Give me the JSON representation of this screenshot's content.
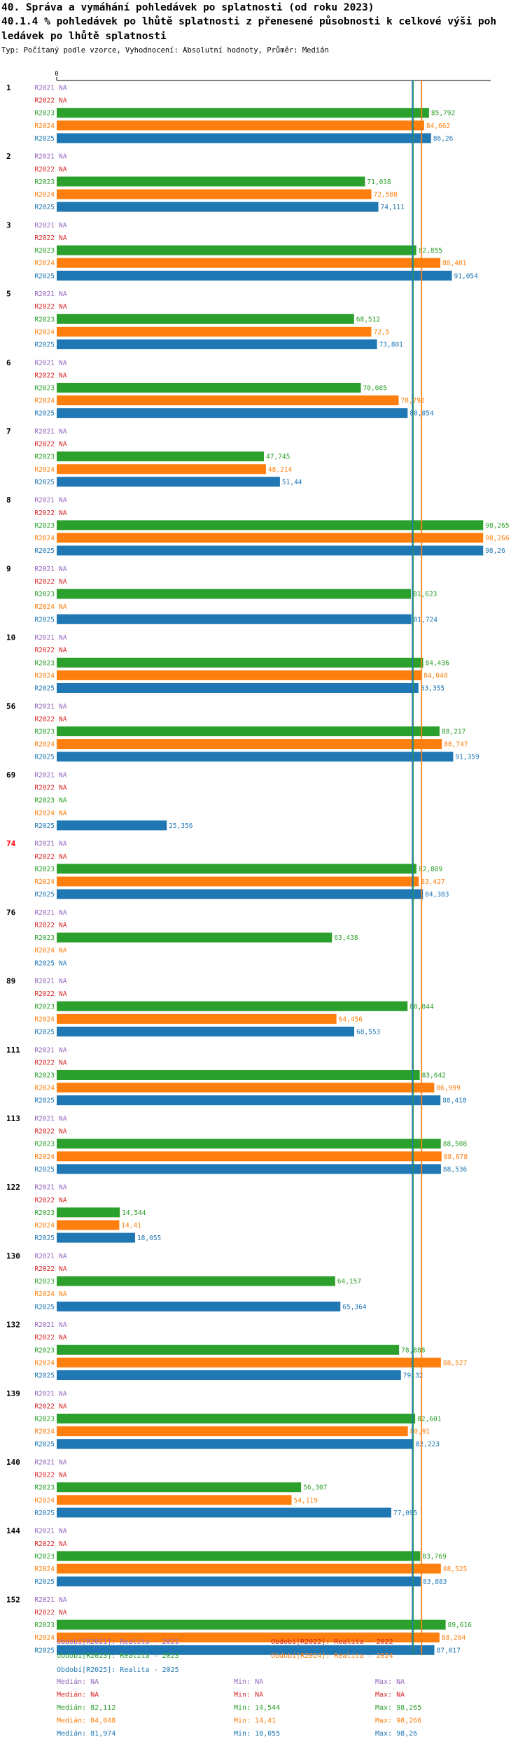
{
  "title_lines": [
    "40. Správa a vymáhání pohledávek po splatnosti (od roku 2023)",
    "40.1.4 % pohledávek po lhůtě splatnosti z přenesené působnosti k celkové výši poh",
    "ledávek po lhůtě splatnosti"
  ],
  "subtitle": "Typ: Počítaný podle vzorce, Vyhodnocení: Absolutní hodnoty, Průměr: Medián",
  "colors": {
    "R2021": "#9467bd",
    "R2022": "#d62728",
    "R2023": "#2ca02c",
    "R2024": "#ff7f0e",
    "R2025": "#1f77b4",
    "axis": "#000000",
    "highlight_group": "#ff0000"
  },
  "chart_data": {
    "type": "bar",
    "orientation": "horizontal",
    "axis_zero_label": "0",
    "xlim": [
      0,
      100
    ],
    "na_label": "NA",
    "series_names": [
      "R2021",
      "R2022",
      "R2023",
      "R2024",
      "R2025"
    ],
    "groups": [
      {
        "label": "1",
        "highlight": false,
        "labels": [
          "NA",
          "NA",
          "85,792",
          "84,662",
          "86,26"
        ],
        "values": [
          null,
          null,
          85.792,
          84.662,
          86.26
        ]
      },
      {
        "label": "2",
        "highlight": false,
        "labels": [
          "NA",
          "NA",
          "71,038",
          "72,508",
          "74,111"
        ],
        "values": [
          null,
          null,
          71.038,
          72.508,
          74.111
        ]
      },
      {
        "label": "3",
        "highlight": false,
        "labels": [
          "NA",
          "NA",
          "82,855",
          "88,401",
          "91,054"
        ],
        "values": [
          null,
          null,
          82.855,
          88.401,
          91.054
        ]
      },
      {
        "label": "5",
        "highlight": false,
        "labels": [
          "NA",
          "NA",
          "68,512",
          "72,5",
          "73,801"
        ],
        "values": [
          null,
          null,
          68.512,
          72.5,
          73.801
        ]
      },
      {
        "label": "6",
        "highlight": false,
        "labels": [
          "NA",
          "NA",
          "70,085",
          "78,792",
          "80,854"
        ],
        "values": [
          null,
          null,
          70.085,
          78.792,
          80.854
        ]
      },
      {
        "label": "7",
        "highlight": false,
        "labels": [
          "NA",
          "NA",
          "47,745",
          "48,214",
          "51,44"
        ],
        "values": [
          null,
          null,
          47.745,
          48.214,
          51.44
        ]
      },
      {
        "label": "8",
        "highlight": false,
        "labels": [
          "NA",
          "NA",
          "98,265",
          "98,266",
          "98,26"
        ],
        "values": [
          null,
          null,
          98.265,
          98.266,
          98.26
        ]
      },
      {
        "label": "9",
        "highlight": false,
        "labels": [
          "NA",
          "NA",
          "81,623",
          "NA",
          "81,724"
        ],
        "values": [
          null,
          null,
          81.623,
          null,
          81.724
        ]
      },
      {
        "label": "10",
        "highlight": false,
        "labels": [
          "NA",
          "NA",
          "84,436",
          "84,048",
          "83,355"
        ],
        "values": [
          null,
          null,
          84.436,
          84.048,
          83.355
        ]
      },
      {
        "label": "56",
        "highlight": false,
        "labels": [
          "NA",
          "NA",
          "88,217",
          "88,747",
          "91,359"
        ],
        "values": [
          null,
          null,
          88.217,
          88.747,
          91.359
        ]
      },
      {
        "label": "69",
        "highlight": false,
        "labels": [
          "NA",
          "NA",
          "NA",
          "NA",
          "25,356"
        ],
        "values": [
          null,
          null,
          null,
          null,
          25.356
        ]
      },
      {
        "label": "74",
        "highlight": true,
        "labels": [
          "NA",
          "NA",
          "82,889",
          "83,427",
          "84,383"
        ],
        "values": [
          null,
          null,
          82.889,
          83.427,
          84.383
        ]
      },
      {
        "label": "76",
        "highlight": false,
        "labels": [
          "NA",
          "NA",
          "63,438",
          "NA",
          "NA"
        ],
        "values": [
          null,
          null,
          63.438,
          null,
          null
        ]
      },
      {
        "label": "89",
        "highlight": false,
        "labels": [
          "NA",
          "NA",
          "80,844",
          "64,456",
          "68,553"
        ],
        "values": [
          null,
          null,
          80.844,
          64.456,
          68.553
        ]
      },
      {
        "label": "111",
        "highlight": false,
        "labels": [
          "NA",
          "NA",
          "83,642",
          "86,999",
          "88,418"
        ],
        "values": [
          null,
          null,
          83.642,
          86.999,
          88.418
        ]
      },
      {
        "label": "113",
        "highlight": false,
        "labels": [
          "NA",
          "NA",
          "88,508",
          "88,678",
          "88,536"
        ],
        "values": [
          null,
          null,
          88.508,
          88.678,
          88.536
        ]
      },
      {
        "label": "122",
        "highlight": false,
        "labels": [
          "NA",
          "NA",
          "14,544",
          "14,41",
          "18,055"
        ],
        "values": [
          null,
          null,
          14.544,
          14.41,
          18.055
        ]
      },
      {
        "label": "130",
        "highlight": false,
        "labels": [
          "NA",
          "NA",
          "64,157",
          "NA",
          "65,364"
        ],
        "values": [
          null,
          null,
          64.157,
          null,
          65.364
        ]
      },
      {
        "label": "132",
        "highlight": false,
        "labels": [
          "NA",
          "NA",
          "78,888",
          "88,527",
          "79,32"
        ],
        "values": [
          null,
          null,
          78.888,
          88.527,
          79.32
        ]
      },
      {
        "label": "139",
        "highlight": false,
        "labels": [
          "NA",
          "NA",
          "82,601",
          "80,91",
          "82,223"
        ],
        "values": [
          null,
          null,
          82.601,
          80.91,
          82.223
        ]
      },
      {
        "label": "140",
        "highlight": false,
        "labels": [
          "NA",
          "NA",
          "56,307",
          "54,119",
          "77,095"
        ],
        "values": [
          null,
          null,
          56.307,
          54.119,
          77.095
        ]
      },
      {
        "label": "144",
        "highlight": false,
        "labels": [
          "NA",
          "NA",
          "83,769",
          "88,525",
          "83,883"
        ],
        "values": [
          null,
          null,
          83.769,
          88.525,
          83.883
        ]
      },
      {
        "label": "152",
        "highlight": false,
        "labels": [
          "NA",
          "NA",
          "89,616",
          "88,204",
          "87,017"
        ],
        "values": [
          null,
          null,
          89.616,
          88.204,
          87.017
        ]
      }
    ],
    "reference_lines": [
      {
        "series": "R2023",
        "value": 82.112
      },
      {
        "series": "R2024",
        "value": 84.048
      },
      {
        "series": "R2025",
        "value": 81.974
      }
    ],
    "legend": [
      {
        "series": "R2021",
        "text": "Období[R2021]: Realita - 2021"
      },
      {
        "series": "R2022",
        "text": "Období[R2022]: Realita - 2022"
      },
      {
        "series": "R2023",
        "text": "Období[R2023]: Realita - 2023"
      },
      {
        "series": "R2024",
        "text": "Období[R2024]: Realita - 2024"
      },
      {
        "series": "R2025",
        "text": "Období[R2025]: Realita - 2025"
      }
    ],
    "stats": [
      {
        "series": "R2021",
        "median": "Medián: NA",
        "min": "Min: NA",
        "max": "Max: NA"
      },
      {
        "series": "R2022",
        "median": "Medián: NA",
        "min": "Min: NA",
        "max": "Max: NA"
      },
      {
        "series": "R2023",
        "median": "Medián: 82,112",
        "min": "Min: 14,544",
        "max": "Max: 98,265"
      },
      {
        "series": "R2024",
        "median": "Medián: 84,048",
        "min": "Min: 14,41",
        "max": "Max: 98,266"
      },
      {
        "series": "R2025",
        "median": "Medián: 81,974",
        "min": "Min: 18,055",
        "max": "Max: 98,26"
      }
    ]
  }
}
